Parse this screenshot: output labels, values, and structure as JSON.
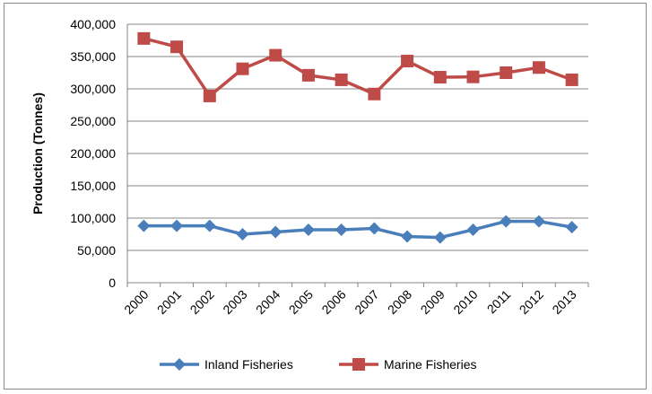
{
  "chart_data": {
    "type": "line",
    "title": "",
    "xlabel": "",
    "ylabel": "Production (Tonnes)",
    "ylim": [
      0,
      400000
    ],
    "yticks": [
      0,
      50000,
      100000,
      150000,
      200000,
      250000,
      300000,
      350000,
      400000
    ],
    "ytick_labels": [
      "0",
      "50,000",
      "100,000",
      "150,000",
      "200,000",
      "250,000",
      "300,000",
      "350,000",
      "400,000"
    ],
    "categories": [
      "2000",
      "2001",
      "2002",
      "2003",
      "2004",
      "2005",
      "2006",
      "2007",
      "2008",
      "2009",
      "2010",
      "2011",
      "2012",
      "2013"
    ],
    "grid": true,
    "legend_position": "bottom",
    "series": [
      {
        "name": "Inland Fisheries",
        "color": "#4a7ebb",
        "marker": "diamond",
        "values": [
          88000,
          88000,
          88000,
          75000,
          78500,
          82000,
          82000,
          84000,
          71500,
          70000,
          82000,
          95000,
          95000,
          86000
        ]
      },
      {
        "name": "Marine Fisheries",
        "color": "#be4b48",
        "marker": "square",
        "values": [
          378000,
          365000,
          289000,
          331000,
          352000,
          321000,
          314000,
          292000,
          343000,
          318000,
          318500,
          325000,
          333000,
          314000
        ]
      }
    ]
  }
}
